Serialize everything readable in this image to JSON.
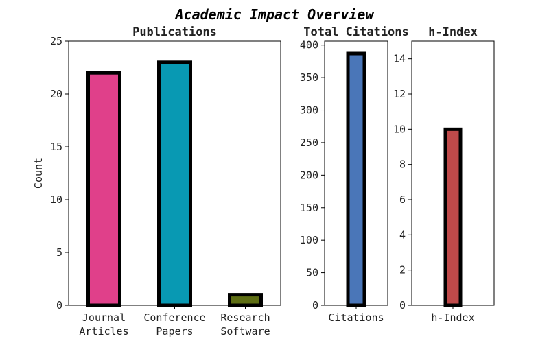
{
  "figure": {
    "title": "Academic Impact Overview"
  },
  "chart_data": [
    {
      "type": "bar",
      "title": "Publications",
      "xlabel": "",
      "ylabel": "Count",
      "categories": [
        "Journal\nArticles",
        "Conference\nPapers",
        "Research\nSoftware"
      ],
      "values": [
        22,
        23,
        1
      ],
      "colors": [
        "#e0408a",
        "#0899b3",
        "#5e6e14"
      ],
      "ylim": [
        0,
        25
      ],
      "yticks": [
        0,
        5,
        10,
        15,
        20,
        25
      ],
      "grid": false
    },
    {
      "type": "bar",
      "title": "Total Citations",
      "xlabel": "",
      "ylabel": "",
      "categories": [
        "Citations"
      ],
      "values": [
        387
      ],
      "colors": [
        "#4a76b8"
      ],
      "ylim": [
        0,
        406
      ],
      "yticks": [
        0,
        50,
        100,
        150,
        200,
        250,
        300,
        350,
        400
      ],
      "grid": false
    },
    {
      "type": "bar",
      "title": "h-Index",
      "xlabel": "",
      "ylabel": "",
      "categories": [
        "h-Index"
      ],
      "values": [
        10
      ],
      "colors": [
        "#bf4a4a"
      ],
      "ylim": [
        0,
        15
      ],
      "yticks": [
        0,
        2,
        4,
        6,
        8,
        10,
        12,
        14
      ],
      "grid": false
    }
  ]
}
